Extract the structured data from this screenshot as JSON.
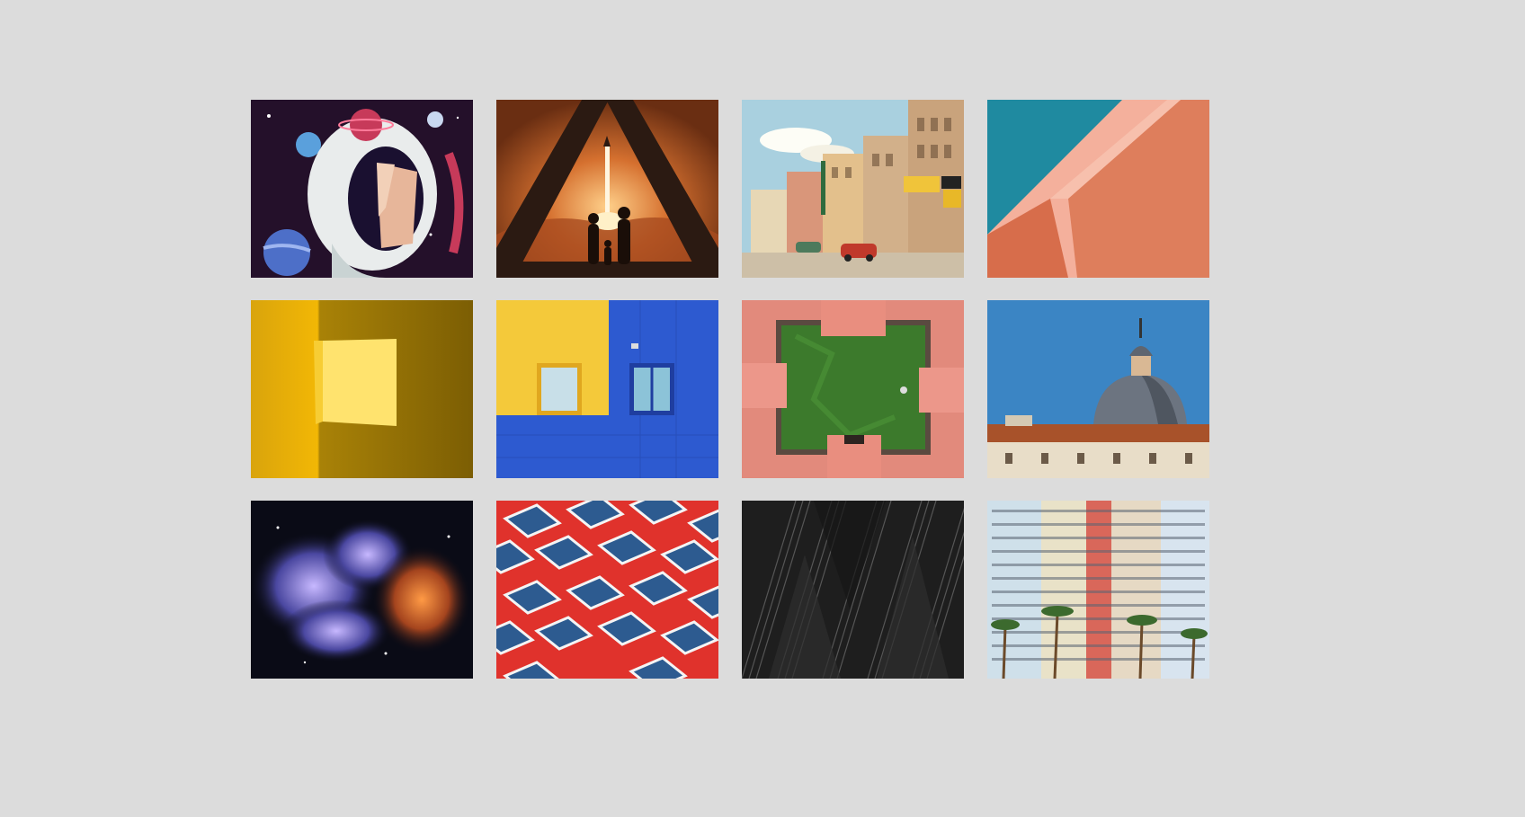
{
  "gallery": {
    "items": [
      {
        "id": "astronaut",
        "icon": "astronaut-illustration-icon",
        "colors": {
          "bg": "#2a1228",
          "accent": "#c73a5a",
          "helmet": "#e9ecec",
          "face": "#e7b69a"
        }
      },
      {
        "id": "rocket-launch",
        "icon": "rocket-launch-illustration-icon",
        "colors": {
          "bg": "#c4622a",
          "dark": "#2b1a12",
          "glow": "#ffd08a"
        }
      },
      {
        "id": "vintage-street",
        "icon": "vintage-street-postcard-icon",
        "colors": {
          "sky": "#9fc9dc",
          "building": "#d9b88e",
          "car": "#c0392b"
        }
      },
      {
        "id": "pink-architecture",
        "icon": "pink-architecture-icon",
        "colors": {
          "sky": "#1f8aa0",
          "wall": "#f0a08a",
          "shade": "#d9724f"
        }
      },
      {
        "id": "yellow-room",
        "icon": "yellow-room-light-icon",
        "colors": {
          "wall": "#c99a07",
          "dark": "#8f6d05",
          "light": "#ffe06a"
        }
      },
      {
        "id": "yellow-blue-facade",
        "icon": "yellow-blue-building-icon",
        "colors": {
          "yellow": "#f4c93a",
          "blue": "#2d5ad0"
        }
      },
      {
        "id": "courtyard-aerial",
        "icon": "courtyard-aerial-icon",
        "colors": {
          "roof": "#e28a7c",
          "grass": "#3c7a2c"
        }
      },
      {
        "id": "dome-building",
        "icon": "church-dome-icon",
        "colors": {
          "sky": "#3b85c4",
          "dome": "#6c7480",
          "roof": "#a8522a"
        }
      },
      {
        "id": "nebula",
        "icon": "nebula-space-icon",
        "colors": {
          "bg": "#0a0b16",
          "purple": "#5d5aa8",
          "orange": "#c2602a"
        }
      },
      {
        "id": "red-grid-windows",
        "icon": "red-grid-windows-icon",
        "colors": {
          "red": "#e0322c",
          "window": "#2d5b90"
        }
      },
      {
        "id": "dark-facade",
        "icon": "dark-geometric-facade-icon",
        "colors": {
          "bg": "#222222",
          "line": "#4a4a4a"
        }
      },
      {
        "id": "colorful-apartments",
        "icon": "colorful-apartments-icon",
        "colors": {
          "bg": "#dfe3ea",
          "stripe": "#d9675a",
          "palm": "#3c6a2e"
        }
      }
    ]
  }
}
